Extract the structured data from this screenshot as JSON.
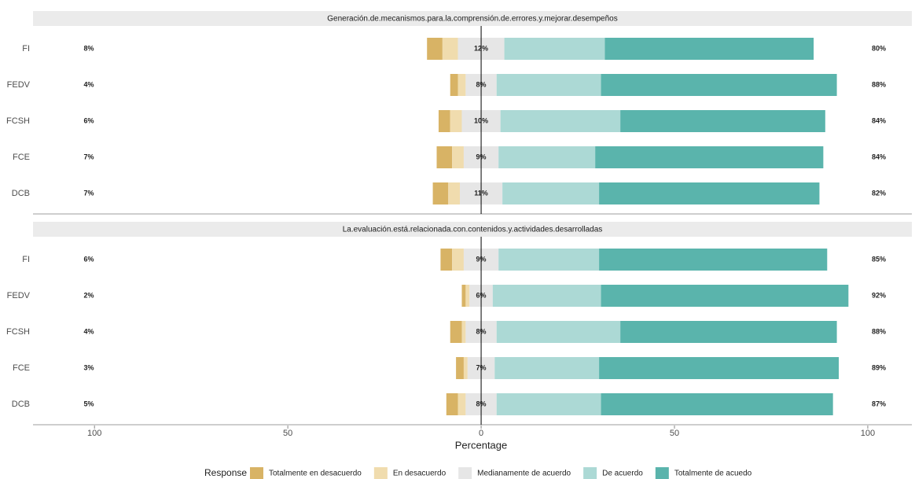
{
  "chart_data": {
    "type": "likert",
    "xlabel": "Percentage",
    "legend_title": "Response",
    "levels": [
      {
        "name": "Totalmente en desacuerdo",
        "color": "#d8b365"
      },
      {
        "name": "En desacuerdo",
        "color": "#f0dcae"
      },
      {
        "name": "Medianamente de acuerdo",
        "color": "#e6e6e6"
      },
      {
        "name": "De acuerdo",
        "color": "#acd9d5"
      },
      {
        "name": "Totalmente de acuedo",
        "color": "#5ab4ac"
      }
    ],
    "xlim": [
      -115.9,
      111.4
    ],
    "xticks": [
      {
        "value": -100,
        "label": "100"
      },
      {
        "value": -50,
        "label": "50"
      },
      0,
      50,
      100
    ],
    "panels": [
      {
        "title": "Generación.de.mecanismos.para.la.comprensión.de.errores.y.mejorar.desempeños",
        "categories": [
          "FI",
          "FEDV",
          "FCSH",
          "FCE",
          "DCB"
        ],
        "values": [
          [
            4,
            2,
            3,
            4,
            4
          ],
          [
            4,
            2,
            3,
            3,
            3
          ],
          [
            12,
            8,
            10,
            9,
            11
          ],
          [
            26,
            27,
            31,
            25,
            25
          ],
          [
            54,
            61,
            53,
            59,
            57
          ]
        ],
        "low_labels": [
          "8%",
          "4%",
          "6%",
          "7%",
          "7%"
        ],
        "neutral_labels": [
          "12%",
          "8%",
          "10%",
          "9%",
          "11%"
        ],
        "high_labels": [
          "80%",
          "88%",
          "84%",
          "84%",
          "82%"
        ]
      },
      {
        "title": "La.evaluación.está.relacionada.con.contenidos.y.actividades.desarrolladas",
        "categories": [
          "FI",
          "FEDV",
          "FCSH",
          "FCE",
          "DCB"
        ],
        "values": [
          [
            3,
            1,
            3,
            2,
            3
          ],
          [
            3,
            1,
            1,
            1,
            2
          ],
          [
            9,
            6,
            8,
            7,
            8
          ],
          [
            26,
            28,
            32,
            27,
            27
          ],
          [
            59,
            64,
            56,
            62,
            60
          ]
        ],
        "low_labels": [
          "6%",
          "2%",
          "4%",
          "3%",
          "5%"
        ],
        "neutral_labels": [
          "9%",
          "6%",
          "8%",
          "7%",
          "8%"
        ],
        "high_labels": [
          "85%",
          "92%",
          "88%",
          "89%",
          "87%"
        ]
      }
    ]
  }
}
